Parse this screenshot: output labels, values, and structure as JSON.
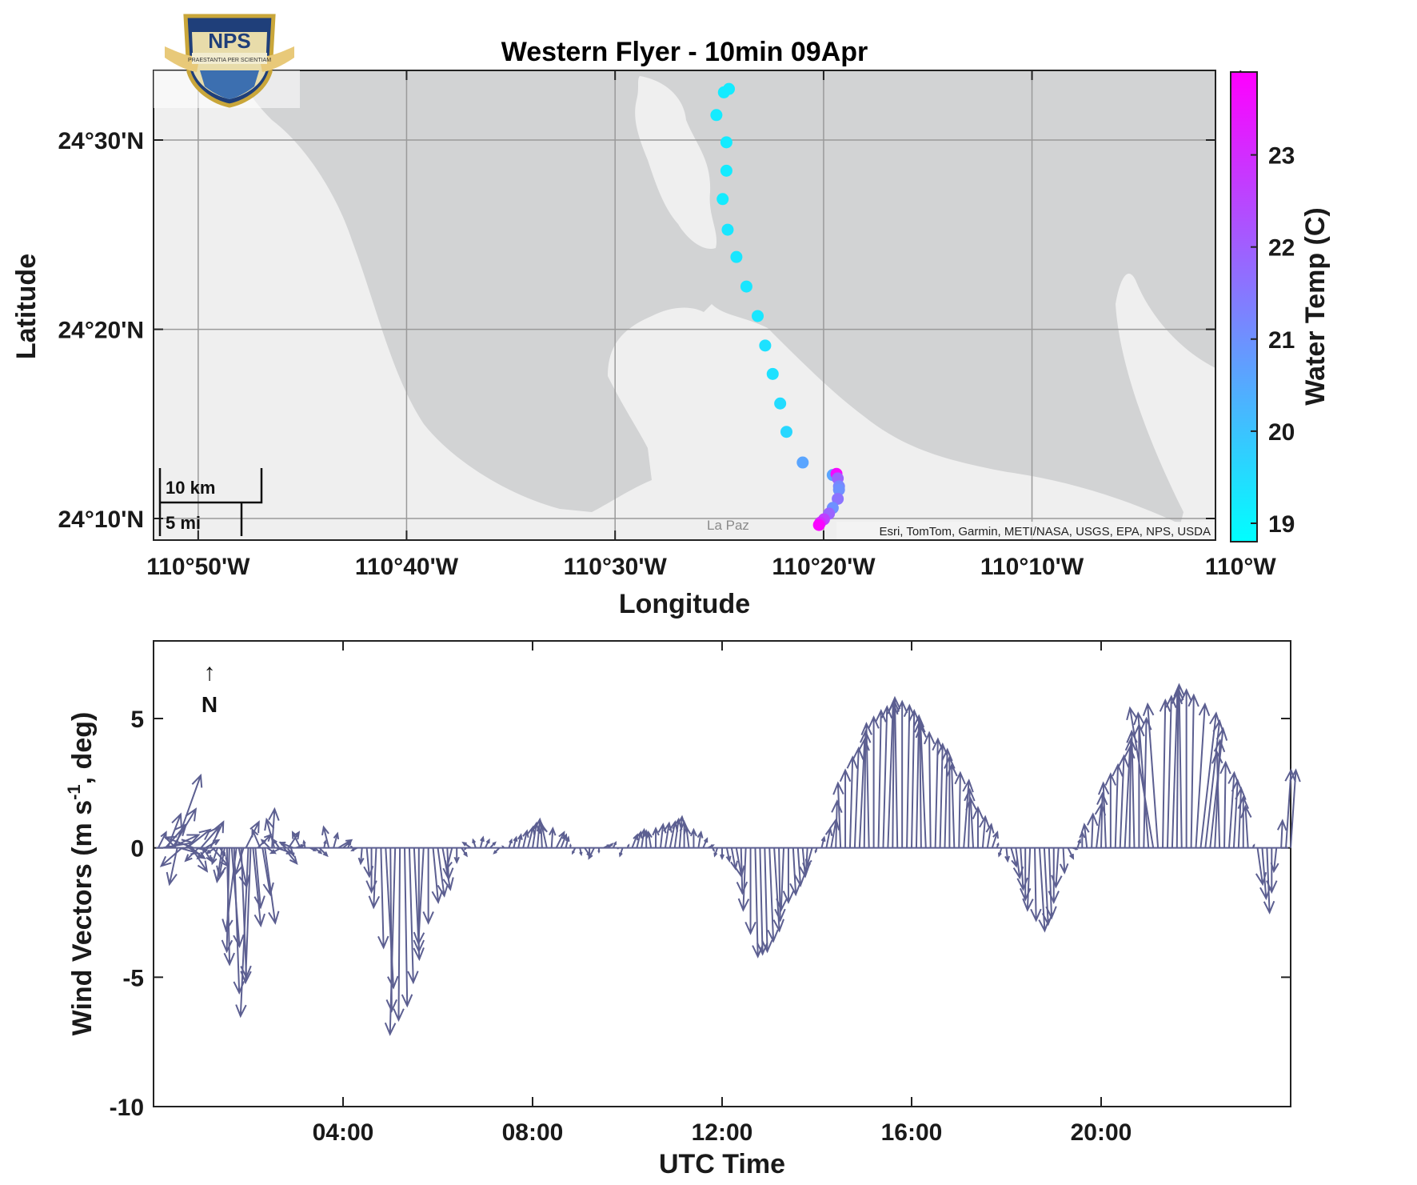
{
  "title": "Western Flyer - 10min 09Apr",
  "logo": {
    "text": "NPS",
    "motto": "PRAESTANTIA PER SCIENTIAM"
  },
  "map": {
    "xlabel": "Longitude",
    "ylabel": "Latitude",
    "lon_range": [
      -110.869,
      -110.02
    ],
    "lat_range": [
      24.145,
      24.395
    ],
    "x_ticks": [
      {
        "value": -110.8333,
        "label": "110°50'W"
      },
      {
        "value": -110.6667,
        "label": "110°40'W"
      },
      {
        "value": -110.5,
        "label": "110°30'W"
      },
      {
        "value": -110.3333,
        "label": "110°20'W"
      },
      {
        "value": -110.1667,
        "label": "110°10'W"
      },
      {
        "value": -110.0,
        "label": "110°W"
      }
    ],
    "y_ticks": [
      {
        "value": 24.5,
        "label": "24°30'N"
      },
      {
        "value": 24.3333,
        "label": "24°20'N"
      },
      {
        "value": 24.1667,
        "label": "24°10'N"
      }
    ],
    "attribution": "Esri, TomTom, Garmin, METI/NASA, USGS, EPA, NPS, USDA",
    "place_label": "La Paz",
    "scalebar": {
      "km_label": "10 km",
      "mi_label": "5 mi"
    },
    "colors": {
      "land": "#efefef",
      "water": "#d2d3d4",
      "grid": "#9a9a9a"
    }
  },
  "colorbar": {
    "label": "Water Temp (C)",
    "range": [
      18.8,
      23.9
    ],
    "ticks": [
      19,
      20,
      21,
      22,
      23
    ],
    "colors": [
      "#00ffff",
      "#ff00ff"
    ]
  },
  "track": [
    {
      "lon": -110.409,
      "lat": 24.545,
      "temp": 19.2
    },
    {
      "lon": -110.413,
      "lat": 24.542,
      "temp": 19.2
    },
    {
      "lon": -110.419,
      "lat": 24.522,
      "temp": 19.2
    },
    {
      "lon": -110.411,
      "lat": 24.498,
      "temp": 19.2
    },
    {
      "lon": -110.411,
      "lat": 24.473,
      "temp": 19.2
    },
    {
      "lon": -110.414,
      "lat": 24.448,
      "temp": 19.2
    },
    {
      "lon": -110.41,
      "lat": 24.421,
      "temp": 19.3
    },
    {
      "lon": -110.403,
      "lat": 24.397,
      "temp": 19.3
    },
    {
      "lon": -110.395,
      "lat": 24.371,
      "temp": 19.3
    },
    {
      "lon": -110.386,
      "lat": 24.345,
      "temp": 19.3
    },
    {
      "lon": -110.38,
      "lat": 24.319,
      "temp": 19.4
    },
    {
      "lon": -110.374,
      "lat": 24.294,
      "temp": 19.4
    },
    {
      "lon": -110.368,
      "lat": 24.268,
      "temp": 19.5
    },
    {
      "lon": -110.363,
      "lat": 24.243,
      "temp": 19.6
    },
    {
      "lon": -110.35,
      "lat": 24.216,
      "temp": 20.6
    },
    {
      "lon": -110.326,
      "lat": 24.205,
      "temp": 20.6
    },
    {
      "lon": -110.323,
      "lat": 24.206,
      "temp": 23.7
    },
    {
      "lon": -110.322,
      "lat": 24.202,
      "temp": 21.9
    },
    {
      "lon": -110.321,
      "lat": 24.195,
      "temp": 21.2
    },
    {
      "lon": -110.321,
      "lat": 24.192,
      "temp": 21.0
    },
    {
      "lon": -110.322,
      "lat": 24.184,
      "temp": 21.6
    },
    {
      "lon": -110.326,
      "lat": 24.176,
      "temp": 21.0
    },
    {
      "lon": -110.329,
      "lat": 24.171,
      "temp": 21.9
    },
    {
      "lon": -110.333,
      "lat": 24.166,
      "temp": 22.6
    },
    {
      "lon": -110.336,
      "lat": 24.163,
      "temp": 23.0
    },
    {
      "lon": -110.337,
      "lat": 24.161,
      "temp": 23.8
    }
  ],
  "wind": {
    "xlabel": "UTC Time",
    "ylabel_main": "Wind Vectors (m s",
    "ylabel_sup": "-1",
    "ylabel_tail": ", deg)",
    "ylim": [
      -10,
      8
    ],
    "xlim_hours": [
      0,
      24.0
    ],
    "y_ticks": [
      5,
      0,
      -5,
      -10
    ],
    "x_ticks": [
      {
        "hour": 4,
        "label": "04:00"
      },
      {
        "hour": 8,
        "label": "08:00"
      },
      {
        "hour": 12,
        "label": "12:00"
      },
      {
        "hour": 16,
        "label": "16:00"
      },
      {
        "hour": 20,
        "label": "20:00"
      }
    ],
    "north_label": "N",
    "north_arrow": "↑",
    "color": "#5c5f91",
    "hours": [
      0.1,
      0.3,
      0.5,
      0.7,
      0.9,
      1.1,
      1.3,
      1.5,
      1.7,
      1.9,
      2.1,
      2.3,
      2.5,
      2.7,
      2.9,
      3.1,
      3.3,
      3.5,
      3.7,
      3.9,
      4.1,
      4.3,
      4.5,
      4.7,
      4.9,
      5.1,
      5.3,
      5.5,
      5.7,
      5.9,
      6.1,
      6.3,
      6.5,
      6.7,
      6.9,
      7.1,
      7.3,
      7.5,
      7.7,
      7.9,
      8.1,
      8.3,
      8.5,
      8.7,
      8.9,
      9.1,
      9.3,
      9.5,
      9.7,
      9.9,
      10.1,
      10.3,
      10.5,
      10.7,
      10.9,
      11.1,
      11.3,
      11.5,
      11.7,
      11.9,
      12.1,
      12.3,
      12.5,
      12.7,
      12.9,
      13.1,
      13.3,
      13.5,
      13.7,
      13.9,
      14.1,
      14.3,
      14.5,
      14.7,
      14.9,
      15.1,
      15.3,
      15.5,
      15.7,
      15.9,
      16.1,
      16.3,
      16.5,
      16.7,
      16.9,
      17.1,
      17.3,
      17.5,
      17.7,
      17.9,
      18.1,
      18.3,
      18.5,
      18.7,
      18.9,
      19.1,
      19.3,
      19.5,
      19.7,
      19.9,
      20.1,
      20.3,
      20.5,
      20.7,
      20.9,
      21.1,
      21.3,
      21.5,
      21.7,
      21.9,
      22.1,
      22.3,
      22.5,
      22.7,
      22.9,
      23.1,
      23.3,
      23.5,
      23.7,
      23.9
    ],
    "u": [
      0.3,
      0.9,
      0.6,
      -0.9,
      0.4,
      0.8,
      -0.2,
      -0.3,
      0.2,
      -0.3,
      0.4,
      0.2,
      -0.4,
      -0.3,
      0.5,
      -0.3,
      0.2,
      0.3,
      -0.2,
      0.5,
      0.1,
      -0.2,
      0.1,
      -0.1,
      0.3,
      -0.2,
      0.1,
      0.2,
      -0.2,
      0.2,
      0.3,
      -0.2,
      0.2,
      -0.3,
      0.1,
      0.2,
      -0.2,
      0.1,
      0.1,
      0.2,
      0.1,
      -0.2,
      0.3,
      0.1,
      -0.1,
      0.2,
      -0.2,
      0.2,
      0.1,
      -0.1,
      0.2,
      0.1,
      -0.1,
      0.1,
      0.2,
      0.1,
      -0.1,
      0.1,
      0.2,
      -0.1,
      0.1,
      0.2,
      -0.1,
      0.1,
      0.1,
      0.2,
      -0.1,
      0.1,
      0.1,
      -0.2,
      0.1,
      0.2,
      -0.1,
      0.1,
      0.2,
      -0.1,
      0.1,
      0.2,
      -0.1,
      0.1,
      0.1,
      -0.2,
      0.1,
      0.1,
      -0.1,
      0.2,
      -0.1,
      0.1,
      0.2,
      -0.1,
      0.2,
      0.1,
      -0.1,
      0.2,
      0.1,
      -0.1,
      0.2,
      0.1,
      -0.1,
      0.2,
      -0.1,
      0.1,
      0.2,
      -0.1,
      0.1,
      -0.9,
      0.1,
      0.2,
      -0.1,
      0.1,
      0.6,
      0.5,
      -0.1,
      0.2,
      0.1,
      -0.1,
      0.2,
      0.1,
      -0.1,
      0.2
    ],
    "v": [
      0.6,
      -0.3,
      1.2,
      -0.5,
      0.4,
      -1.1,
      -1.0,
      -1.5,
      -1.2,
      -5.3,
      -6.0,
      -0.8,
      -1.1,
      0.5,
      -0.2,
      0.6,
      -0.1,
      -0.3,
      0.8,
      0.3,
      0.2,
      -0.1,
      -1.1,
      -2.3,
      -5.4,
      -7.2,
      -6.1,
      -4.3,
      -3.7,
      -2.1,
      -1.6,
      -0.8,
      -0.3,
      0.2,
      0.4,
      0.2,
      -0.2,
      0.3,
      0.5,
      0.8,
      1.1,
      0.9,
      0.6,
      0.4,
      -0.2,
      -0.3,
      -0.4,
      0.1,
      0.2,
      -0.3,
      0.5,
      0.7,
      0.6,
      0.9,
      1.0,
      1.2,
      0.8,
      0.6,
      0.1,
      -0.3,
      -0.5,
      -1.1,
      -2.4,
      -4.2,
      -4.0,
      -3.2,
      -2.4,
      -1.8,
      -1.1,
      -0.7,
      0.4,
      1.1,
      2.5,
      3.5,
      4.2,
      4.8,
      5.3,
      5.6,
      5.8,
      5.5,
      5.1,
      4.7,
      4.2,
      3.8,
      3.2,
      2.6,
      1.9,
      1.2,
      0.6,
      -0.3,
      -0.7,
      -1.6,
      -2.4,
      -3.2,
      -2.7,
      -1.5,
      -0.4,
      0.3,
      0.9,
      1.7,
      2.5,
      3.2,
      3.9,
      4.5,
      5.0,
      5.4,
      5.7,
      6.0,
      6.3,
      5.9,
      5.2,
      4.6,
      3.7,
      2.9,
      2.3,
      1.6,
      -1.4,
      -2.5,
      -0.9,
      3.0
    ],
    "vectors": [
      [
        0.1,
        0.3,
        0.6
      ],
      [
        0.18,
        1.2,
        0.2
      ],
      [
        0.25,
        0.8,
        0.9
      ],
      [
        0.3,
        0.5,
        1.3
      ],
      [
        0.35,
        1.1,
        0.5
      ],
      [
        0.4,
        0.9,
        1.5
      ],
      [
        0.45,
        1.0,
        2.8
      ],
      [
        0.5,
        -0.3,
        -1.4
      ],
      [
        0.55,
        0.7,
        -0.2
      ],
      [
        0.6,
        -0.8,
        -0.7
      ],
      [
        0.7,
        0.9,
        0.7
      ],
      [
        0.75,
        0.6,
        -0.4
      ],
      [
        0.8,
        0.6,
        -0.9
      ],
      [
        0.85,
        -1.1,
        0.4
      ],
      [
        0.9,
        0.4,
        -0.1
      ],
      [
        0.95,
        -0.5,
        -0.5
      ],
      [
        1.0,
        0.7,
        0.8
      ],
      [
        1.05,
        0.3,
        -0.5
      ],
      [
        1.1,
        0.5,
        0.3
      ],
      [
        1.15,
        -0.4,
        -0.4
      ],
      [
        1.2,
        0.5,
        1.0
      ],
      [
        1.25,
        0.6,
        -0.7
      ],
      [
        1.3,
        -0.3,
        -0.2
      ],
      [
        1.35,
        -0.2,
        -0.6
      ],
      [
        1.4,
        0.2,
        -0.3
      ],
      [
        1.45,
        -0.2,
        -1.3
      ],
      [
        1.5,
        -0.2,
        -1.1
      ],
      [
        1.55,
        0.1,
        -4.5
      ],
      [
        1.6,
        -0.1,
        -4.0
      ],
      [
        1.65,
        0.3,
        -3.8
      ],
      [
        1.7,
        0.2,
        -5.6
      ],
      [
        1.75,
        -0.4,
        -3.2
      ],
      [
        1.8,
        0.3,
        -1.5
      ],
      [
        1.85,
        0.2,
        -5.0
      ],
      [
        1.9,
        -0.3,
        -1.0
      ],
      [
        1.95,
        0.5,
        1.0
      ],
      [
        2.0,
        -0.3,
        -6.5
      ],
      [
        2.05,
        -0.2,
        -5.2
      ],
      [
        2.1,
        0.3,
        -3.0
      ],
      [
        2.15,
        0.2,
        -2.3
      ],
      [
        2.2,
        0.5,
        0.5
      ],
      [
        2.25,
        -0.3,
        0.7
      ],
      [
        2.3,
        0.3,
        -1.8
      ],
      [
        2.35,
        0.4,
        -2.9
      ],
      [
        2.4,
        0.3,
        -0.2
      ],
      [
        2.45,
        -0.3,
        0.3
      ],
      [
        2.5,
        0.1,
        1.5
      ],
      [
        2.55,
        -0.3,
        1.1
      ],
      [
        2.6,
        0.6,
        -0.2
      ],
      [
        2.65,
        -0.2,
        0.3
      ],
      [
        2.7,
        -0.4,
        -0.2
      ],
      [
        2.75,
        0.5,
        -0.6
      ],
      [
        2.8,
        -0.2,
        0.2
      ],
      [
        2.85,
        0.4,
        0.6
      ],
      [
        2.9,
        0.1,
        -0.3
      ],
      [
        2.95,
        -0.5,
        0.2
      ],
      [
        3.0,
        0.3,
        0.1
      ]
    ]
  }
}
